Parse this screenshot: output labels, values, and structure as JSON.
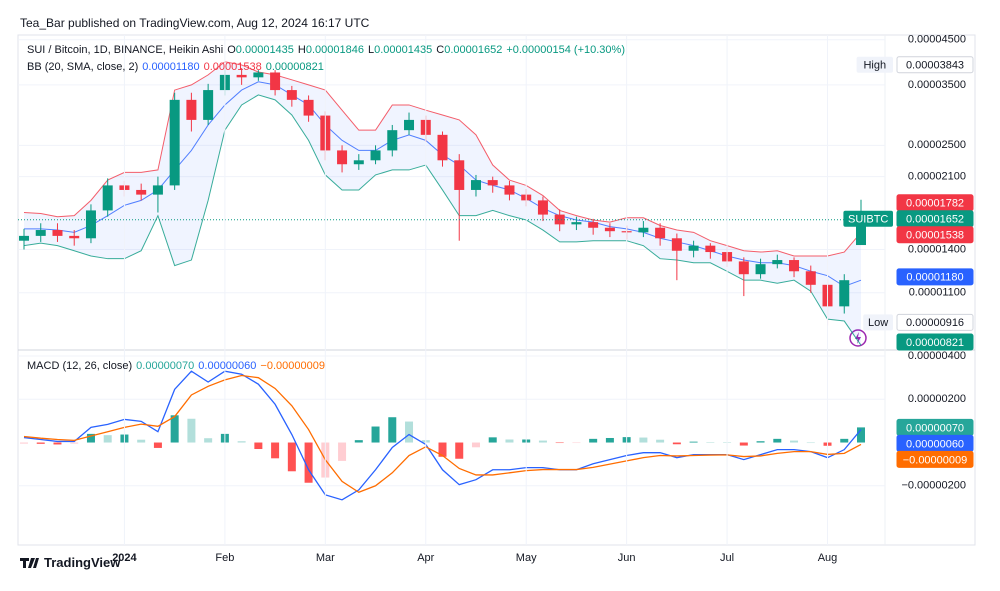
{
  "header": {
    "published": "Tea_Bar published on TradingView.com, Aug 12, 2024 16:17 UTC"
  },
  "chart_data": [
    {
      "type": "candlestick",
      "title": "SUI / Bitcoin, 1D, BINANCE, Heikin Ashi",
      "log_scale": true,
      "grid": true,
      "ylim": [
        8e-06,
        4.62e-05
      ],
      "yticks": [
        {
          "value": 4.5e-05,
          "label": "0.00004500"
        },
        {
          "value": 3.5e-05,
          "label": "0.00003500"
        },
        {
          "value": 2.5e-05,
          "label": "0.00002500"
        },
        {
          "value": 2.1e-05,
          "label": "0.00002100"
        },
        {
          "value": 1.4e-05,
          "label": "0.00001400"
        },
        {
          "value": 1.1e-05,
          "label": "0.00001100"
        }
      ],
      "up_color": "#089981",
      "down_color": "#f23645",
      "open": [
        1.47e-05,
        1.51e-05,
        1.56e-05,
        1.51e-05,
        1.49e-05,
        1.74e-05,
        2e-05,
        1.95e-05,
        1.9e-05,
        2e-05,
        3.22e-05,
        2.88e-05,
        3.4e-05,
        3.7e-05,
        3.65e-05,
        3.75e-05,
        3.4e-05,
        3.22e-05,
        2.95e-05,
        2.43e-05,
        2.25e-05,
        2.3e-05,
        2.43e-05,
        2.72e-05,
        2.88e-05,
        2.65e-05,
        2.3e-05,
        1.95e-05,
        2.06e-05,
        2e-05,
        1.9e-05,
        1.84e-05,
        1.7e-05,
        1.61e-05,
        1.63e-05,
        1.58e-05,
        1.55e-05,
        1.54e-05,
        1.58e-05,
        1.49e-05,
        1.39e-05,
        1.43e-05,
        1.38e-05,
        1.31e-05,
        1.22e-05,
        1.29e-05,
        1.32e-05,
        1.24e-05,
        1.15e-05,
        1.02e-05,
        1.435e-05
      ],
      "high": [
        1.57e-05,
        1.62e-05,
        1.62e-05,
        1.56e-05,
        1.8e-05,
        2.08e-05,
        2.05e-05,
        2.02e-05,
        2.1e-05,
        3.35e-05,
        3.35e-05,
        3.52e-05,
        3.84e-05,
        3.843e-05,
        3.8e-05,
        3.8e-05,
        3.48e-05,
        3.3e-05,
        3.02e-05,
        2.5e-05,
        2.38e-05,
        2.5e-05,
        2.8e-05,
        3e-05,
        2.95e-05,
        2.7e-05,
        2.38e-05,
        2.12e-05,
        2.1e-05,
        2.05e-05,
        1.96e-05,
        1.88e-05,
        1.75e-05,
        1.68e-05,
        1.66e-05,
        1.62e-05,
        1.6e-05,
        1.64e-05,
        1.62e-05,
        1.53e-05,
        1.47e-05,
        1.45e-05,
        1.42e-05,
        1.34e-05,
        1.33e-05,
        1.36e-05,
        1.34e-05,
        1.28e-05,
        1.19e-05,
        1.22e-05,
        1.846e-05
      ],
      "low": [
        1.4e-05,
        1.46e-05,
        1.46e-05,
        1.43e-05,
        1.45e-05,
        1.68e-05,
        1.88e-05,
        1.84e-05,
        1.72e-05,
        1.95e-05,
        2.7e-05,
        2.8e-05,
        3.3e-05,
        3.5e-05,
        3.58e-05,
        3.3e-05,
        3.1e-05,
        2.85e-05,
        2.3e-05,
        2.15e-05,
        2.18e-05,
        2.25e-05,
        2.35e-05,
        2.65e-05,
        2.55e-05,
        2.22e-05,
        1.47e-05,
        1.88e-05,
        1.92e-05,
        1.84e-05,
        1.78e-05,
        1.64e-05,
        1.55e-05,
        1.56e-05,
        1.52e-05,
        1.5e-05,
        1.48e-05,
        1.5e-05,
        1.43e-05,
        1.18e-05,
        1.34e-05,
        1.33e-05,
        1.27e-05,
        1.08e-05,
        1.19e-05,
        1.26e-05,
        1.2e-05,
        1.1e-05,
        9.16e-06,
        9.8e-06,
        1.435e-05
      ],
      "close": [
        1.51e-05,
        1.56e-05,
        1.51e-05,
        1.49e-05,
        1.74e-05,
        2e-05,
        1.95e-05,
        1.9e-05,
        2e-05,
        3.22e-05,
        2.88e-05,
        3.4e-05,
        3.7e-05,
        3.65e-05,
        3.75e-05,
        3.4e-05,
        3.22e-05,
        2.95e-05,
        2.43e-05,
        2.25e-05,
        2.3e-05,
        2.43e-05,
        2.72e-05,
        2.88e-05,
        2.65e-05,
        2.3e-05,
        1.95e-05,
        2.06e-05,
        2e-05,
        1.9e-05,
        1.84e-05,
        1.7e-05,
        1.61e-05,
        1.63e-05,
        1.58e-05,
        1.55e-05,
        1.54e-05,
        1.58e-05,
        1.49e-05,
        1.39e-05,
        1.43e-05,
        1.38e-05,
        1.31e-05,
        1.22e-05,
        1.29e-05,
        1.32e-05,
        1.24e-05,
        1.15e-05,
        1.02e-05,
        1.18e-05,
        1.652e-05
      ],
      "ohlc_legend": [
        {
          "key": "O",
          "label": "0.00001435"
        },
        {
          "key": "H",
          "label": "0.00001846"
        },
        {
          "key": "L",
          "label": "0.00001435"
        },
        {
          "key": "C",
          "label": "0.00001652"
        }
      ],
      "change_label": "+0.00000154 (+10.30%)",
      "overlays": [
        {
          "name": "BB (20, SMA, close, 2)",
          "fill_color": "#2962ff",
          "series": [
            {
              "color": "#2962ff",
              "value_label": "0.00001180",
              "values": [
                1.57e-05,
                1.57e-05,
                1.56e-05,
                1.54e-05,
                1.6e-05,
                1.69e-05,
                1.79e-05,
                1.84e-05,
                1.95e-05,
                2.18e-05,
                2.43e-05,
                2.8e-05,
                3.13e-05,
                3.4e-05,
                3.56e-05,
                3.5e-05,
                3.31e-05,
                3.13e-05,
                2.8e-05,
                2.57e-05,
                2.43e-05,
                2.43e-05,
                2.57e-05,
                2.65e-05,
                2.57e-05,
                2.37e-05,
                2.24e-05,
                2.06e-05,
                2e-05,
                1.95e-05,
                1.86e-05,
                1.76e-05,
                1.69e-05,
                1.65e-05,
                1.63e-05,
                1.59e-05,
                1.57e-05,
                1.54e-05,
                1.49e-05,
                1.46e-05,
                1.43e-05,
                1.39e-05,
                1.35e-05,
                1.32e-05,
                1.3e-05,
                1.3e-05,
                1.28e-05,
                1.24e-05,
                1.21e-05,
                1.14e-05,
                1.18e-05
              ]
            },
            {
              "color": "#f23645",
              "value_label": "0.00001538",
              "values": [
                1.72e-05,
                1.71e-05,
                1.68e-05,
                1.69e-05,
                1.84e-05,
                2.06e-05,
                2.15e-05,
                2.15e-05,
                2.18e-05,
                3.4e-05,
                3.5e-05,
                3.7e-05,
                3.98e-05,
                3.91e-05,
                3.76e-05,
                3.7e-05,
                3.6e-05,
                3.5e-05,
                3.4e-05,
                3.04e-05,
                2.72e-05,
                2.72e-05,
                3.13e-05,
                3.13e-05,
                3.04e-05,
                2.96e-05,
                2.88e-05,
                2.65e-05,
                2.24e-05,
                2.06e-05,
                2e-05,
                1.89e-05,
                1.74e-05,
                1.69e-05,
                1.65e-05,
                1.63e-05,
                1.67e-05,
                1.67e-05,
                1.6e-05,
                1.56e-05,
                1.54e-05,
                1.47e-05,
                1.43e-05,
                1.39e-05,
                1.38e-05,
                1.39e-05,
                1.35e-05,
                1.35e-05,
                1.35e-05,
                1.38e-05,
                1.538e-05
              ]
            },
            {
              "color": "#089981",
              "value_label": "0.00000821",
              "values": [
                1.43e-05,
                1.45e-05,
                1.43e-05,
                1.39e-05,
                1.35e-05,
                1.33e-05,
                1.33e-05,
                1.39e-05,
                1.69e-05,
                1.28e-05,
                1.32e-05,
                1.84e-05,
                2.72e-05,
                3.13e-05,
                3.31e-05,
                3.22e-05,
                2.96e-05,
                2.57e-05,
                2.12e-05,
                1.95e-05,
                1.95e-05,
                2.12e-05,
                2.18e-05,
                2.18e-05,
                2.24e-05,
                1.95e-05,
                1.69e-05,
                1.69e-05,
                1.74e-05,
                1.69e-05,
                1.65e-05,
                1.56e-05,
                1.46e-05,
                1.46e-05,
                1.47e-05,
                1.47e-05,
                1.47e-05,
                1.43e-05,
                1.33e-05,
                1.32e-05,
                1.3e-05,
                1.3e-05,
                1.24e-05,
                1.18e-05,
                1.18e-05,
                1.16e-05,
                1.18e-05,
                1.11e-05,
                9.5e-06,
                9.4e-06,
                8.21e-06
              ]
            }
          ]
        }
      ],
      "price_labels": [
        {
          "tag": "High",
          "label": "0.00003843",
          "value": 3.843e-05,
          "color": "#ffffff",
          "text_color": "#131722"
        },
        {
          "label": "0.00001782",
          "value": 1.782e-05,
          "color": "#f23645",
          "text_color": "#ffffff"
        },
        {
          "tag": "SUIBTC",
          "label": "0.00001652",
          "value": 1.652e-05,
          "color": "#089981",
          "text_color": "#ffffff",
          "price_line": true
        },
        {
          "tag": "Low",
          "label": "0.00000916",
          "value": 9.16e-06,
          "color": "#ffffff",
          "text_color": "#131722"
        }
      ]
    },
    {
      "type": "macd",
      "title": "MACD (12, 26, close)",
      "grid": true,
      "ylim": [
        -4.74e-06,
        4.28e-06
      ],
      "yticks": [
        {
          "value": 4e-06,
          "label": "0.00000400"
        },
        {
          "value": 2e-06,
          "label": "0.00000200"
        },
        {
          "value": -2e-06,
          "label": "−0.00000200"
        }
      ],
      "categories": [
        null,
        null,
        null,
        null,
        null,
        null,
        "2024",
        null,
        null,
        null,
        null,
        null,
        "Feb",
        null,
        null,
        null,
        null,
        null,
        "Mar",
        null,
        null,
        null,
        null,
        null,
        "Apr",
        null,
        null,
        null,
        null,
        null,
        "May",
        null,
        null,
        null,
        null,
        null,
        "Jun",
        null,
        null,
        null,
        null,
        null,
        "Jul",
        null,
        null,
        null,
        null,
        null,
        "Aug",
        null,
        null
      ],
      "series": [
        {
          "type": "histogram",
          "color": "#26a69a",
          "colors": [
            "#26a69a",
            "#b2dfdb",
            "#ffcdd2",
            "#ff5252"
          ],
          "value_label": "0.00000070",
          "values": [
            -5e-08,
            -6e-08,
            -9e-08,
            -5e-08,
            4e-07,
            3.4e-07,
            3.7e-07,
            1.3e-07,
            -2.5e-07,
            1.26e-06,
            1.1e-06,
            2e-07,
            4e-07,
            6e-08,
            -3e-07,
            -7.3e-07,
            -1.33e-06,
            -1.86e-06,
            -1.62e-06,
            -8.5e-07,
            1.1e-07,
            7.4e-07,
            1.17e-06,
            9.7e-07,
            1.1e-07,
            -6.6e-07,
            -7.5e-07,
            -2.2e-07,
            2.4e-07,
            1.4e-07,
            1.4e-07,
            9e-08,
            -1e-08,
            -1e-08,
            1.7e-07,
            2.1e-07,
            2.5e-07,
            2.3e-07,
            1.3e-07,
            -8e-08,
            4e-08,
            2e-08,
            1e-08,
            -1.4e-07,
            6e-08,
            1.7e-07,
            9e-08,
            0,
            -1.5e-07,
            1.7e-07,
            7e-07
          ]
        },
        {
          "type": "line",
          "color": "#2962ff",
          "value_label": "0.00000060",
          "values": [
            2.3e-07,
            1.4e-07,
            5e-08,
            5e-08,
            7e-07,
            8.4e-07,
            1.07e-06,
            9.8e-07,
            5e-07,
            2.46e-06,
            3.3e-06,
            2.8e-06,
            3.3e-06,
            3.16e-06,
            2.7e-06,
            1.77e-06,
            3.7e-07,
            -1.26e-06,
            -2.42e-06,
            -2.65e-06,
            -2.19e-06,
            -1.26e-06,
            -2.3e-07,
            3.7e-07,
            -9e-08,
            -1.26e-06,
            -1.95e-06,
            -1.72e-06,
            -1.26e-06,
            -1.26e-06,
            -1.16e-06,
            -1.16e-06,
            -1.26e-06,
            -1.26e-06,
            -9.8e-07,
            -7.9e-07,
            -6e-07,
            -4.7e-07,
            -4.7e-07,
            -7e-07,
            -5.6e-07,
            -5.6e-07,
            -5.6e-07,
            -7.9e-07,
            -5.6e-07,
            -3.3e-07,
            -3.3e-07,
            -4.2e-07,
            -7e-07,
            -3.3e-07,
            6e-07
          ]
        },
        {
          "type": "line",
          "color": "#ff6d00",
          "value_label": "−0.00000009",
          "values": [
            2.8e-07,
            2e-07,
            1.4e-07,
            1e-07,
            3e-07,
            5e-07,
            7e-07,
            8.5e-07,
            7.5e-07,
            1.2e-06,
            2.2e-06,
            2.6e-06,
            2.9e-06,
            3.1e-06,
            3e-06,
            2.5e-06,
            1.7e-06,
            6e-07,
            -8e-07,
            -1.8e-06,
            -2.3e-06,
            -2e-06,
            -1.4e-06,
            -6e-07,
            -2e-07,
            -6e-07,
            -1.2e-06,
            -1.5e-06,
            -1.5e-06,
            -1.4e-06,
            -1.3e-06,
            -1.25e-06,
            -1.25e-06,
            -1.25e-06,
            -1.15e-06,
            -1e-06,
            -8.5e-07,
            -7e-07,
            -6e-07,
            -6.2e-07,
            -6e-07,
            -5.8e-07,
            -5.7e-07,
            -6.5e-07,
            -6.2e-07,
            -5e-07,
            -4.2e-07,
            -4.2e-07,
            -5.5e-07,
            -5e-07,
            -9e-08
          ]
        }
      ]
    }
  ],
  "footer": {
    "brand": "TradingView"
  }
}
